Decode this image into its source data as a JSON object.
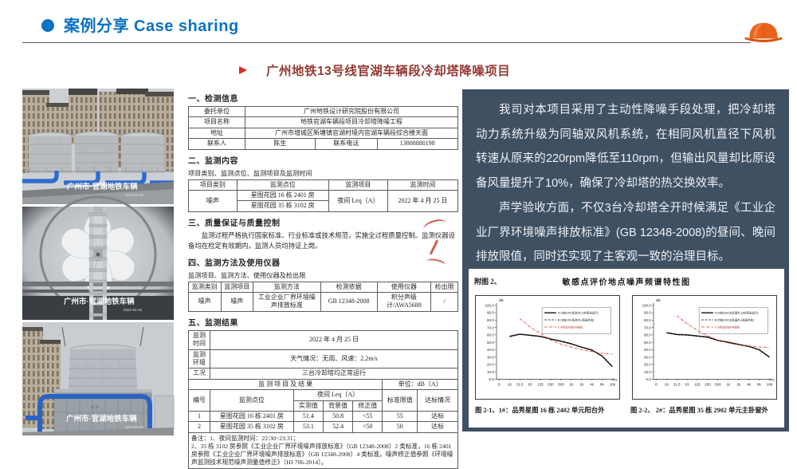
{
  "header": {
    "title": "案例分享 Case sharing"
  },
  "slide_title": "广州地铁13号线官湖车辆段冷却塔降噪项目",
  "photos": {
    "watermark": "广州市·官湖地铁车辆",
    "watermark_date": "2022-04-25"
  },
  "document": {
    "s1_heading": "一、检测信息",
    "info_table": {
      "rows": [
        {
          "label": "委托单位",
          "value": "广州地铁设计研究院股份有限公司"
        },
        {
          "label": "项目名称",
          "value": "地铁官湖车辆段项目冷却塔降噪工程"
        },
        {
          "label": "地址",
          "value": "广州市增城区新塘镇官湖村境内官湖车辆段综合楼天面"
        },
        {
          "label": "联系人",
          "value": "陈生",
          "label2": "联系电话",
          "value2": "13808880198"
        }
      ]
    },
    "s2_heading": "二、监测内容",
    "s2_note": "项目类别、监测点位、监测项目及监测时间",
    "content_table": {
      "headers": [
        "项目类别",
        "监测点位",
        "监测项目",
        "监测时间"
      ],
      "category": "噪声",
      "points": [
        "星图花园 16 栋 2401 房",
        "星图花园 35 栋 3102 房"
      ],
      "item": "夜间 Leq（A）",
      "time": "2022 年 4 月 25 日"
    },
    "s3_heading": "三、质量保证与质量控制",
    "s3_text": "监测过程严格执行国家标准、行业标准或技术规范，实施全过程质量控制。监测仪器设备均在检定有效期内，监测人员均持证上岗。",
    "s4_heading": "四、监测方法及使用仪器",
    "s4_note": "监测项目、监测方法、使用仪器及检出限",
    "method_table": {
      "headers": [
        "监测类别",
        "监测项目",
        "监测方法",
        "检测依据",
        "使用仪器",
        "检出限"
      ],
      "row": [
        "噪声",
        "噪声",
        "工业企业厂界环境噪声排放标准",
        "GB 12348-2008",
        "积分声级计/AWA5688",
        "/"
      ]
    },
    "s5_heading": "五、监测结果",
    "result_table": {
      "info_rows": [
        {
          "label": "监测时间",
          "value": "2022 年 4 月 25 日"
        },
        {
          "label": "监测环境",
          "value": "天气情况：无雨、风速：2.2m/s"
        },
        {
          "label": "工况",
          "value": "三台冷却塔均正常运行"
        }
      ],
      "banner_left": "监 测 项 目 及 结 果",
      "banner_right": "单位：dB（A）",
      "col_headers": {
        "no": "编号",
        "point": "监测点位",
        "leq": "夜间 Leq（A）",
        "measured": "实测值",
        "background": "背景值",
        "corrected": "修正值",
        "limit": "标准限值",
        "status": "达标情况"
      },
      "rows": [
        {
          "no": "1",
          "point": "星图花园 16 栋 2401 房",
          "measured": "51.4",
          "background": "50.8",
          "corrected": "<55",
          "limit": "55",
          "status": "达标"
        },
        {
          "no": "2",
          "point": "星图花园 35 栋 3102 房",
          "measured": "53.1",
          "background": "52.4",
          "corrected": "<50",
          "limit": "50",
          "status": "达标"
        }
      ],
      "remark": "备注：1、夜间监测时间：22:30~23:31；\n2、35 栋 3102 房参照《工业企业厂界环境噪声排放标准》（GB 12348-2008）2 类标准，16 栋 2401 房参照《工业企业厂界环境噪声排放标准》（GB 12348-2008）4 类标准。噪声修正值参照《环境噪声监测技术规范噪声测量值修正》（HJ 706-2014）。"
    }
  },
  "panel": {
    "paragraph1": "我司对本项目采用了主动性降噪手段处理，把冷却塔动力系统升级为同轴双风机系统，在相同风机直径下风机转速从原来的220rpm降低至110rpm，但输出风量却比原设备风量提升了10%，确保了冷却塔的热交换效率。",
    "paragraph2": "声学验收方面，不仅3台冷却塔全开时候满足《工业企业厂界环境噪声排放标准》(GB 12348-2008)的昼间、晚间排放限值，同时还实现了主客观一致的治理目标。"
  },
  "figure": {
    "label": "附图 2、",
    "title": "敏感点评价地点噪声频谱特性图",
    "captions": [
      "图 2-1、1#：品秀星图 16 栋 2402 单元阳台外",
      "图 2-2、 2#：品秀星图 35 栋 2902 单元主卧窗外"
    ]
  },
  "chart_data": [
    {
      "type": "line",
      "title": "敏感点评价地点噪声频谱特性图（16栋2401阳台外）",
      "xlabel": "Hz",
      "ylabel": "dB",
      "categories": [
        "8",
        "16",
        "31.5",
        "63",
        "125",
        "250",
        "500",
        "1k",
        "2k",
        "4k",
        "8k",
        "16k"
      ],
      "ylim": [
        0,
        100
      ],
      "ytick_step": 10,
      "grid": false,
      "legend_position": "top-right",
      "series": [
        {
          "name": "A:16栋2401阳台外-(3台塔全运行)",
          "style": "solid-black",
          "x_start_index": 1,
          "values": [
            58,
            61,
            59.5,
            58,
            54.5,
            51.5,
            48,
            43.5,
            39.5,
            31.5,
            17
          ]
        },
        {
          "name": "B:16栋2401阳台外-(背景状态)",
          "style": "dashed-black",
          "x_start_index": 1,
          "values": [
            57.5,
            60.5,
            59,
            57.5,
            54,
            51,
            47.5,
            43,
            39,
            31,
            16.5
          ]
        },
        {
          "name": "C:A状态对应NR曲线",
          "style": "dashdot-red",
          "x_start_index": 2,
          "values": [
            82,
            70.5,
            62,
            53,
            47.5,
            43.5,
            40,
            37.5,
            35,
            34
          ]
        }
      ]
    },
    {
      "type": "line",
      "title": "敏感点评价地点噪声频谱特性图（35栋主卧窗外）",
      "xlabel": "Hz",
      "ylabel": "dB",
      "categories": [
        "8",
        "16",
        "31.5",
        "63",
        "125",
        "250",
        "500",
        "1k",
        "2k",
        "4k",
        "8k",
        "16k"
      ],
      "ylim": [
        0,
        100
      ],
      "ytick_step": 10,
      "grid": false,
      "legend_position": "top-right",
      "series": [
        {
          "name": "A:35栋2902主卧窗外-(3台塔全运行)",
          "style": "solid-black",
          "x_start_index": 1,
          "values": [
            63,
            60.5,
            60,
            58.5,
            57,
            52.5,
            50,
            47,
            44.5,
            40,
            30
          ]
        },
        {
          "name": "B:35栋3102主卧窗外-(背景状态)",
          "style": "dashed-black",
          "x_start_index": 1,
          "values": [
            62.5,
            60,
            59.5,
            58,
            56.5,
            52,
            49.5,
            46.5,
            44,
            39.5,
            29.5
          ]
        },
        {
          "name": "C:A状态对应NR曲线",
          "style": "dashdot-red",
          "x_start_index": 2,
          "values": [
            86,
            75,
            66,
            58.5,
            53,
            49,
            46.5,
            45,
            43.5,
            43
          ]
        }
      ]
    }
  ],
  "colors": {
    "accent_blue": "#0b72c4",
    "title_red": "#943a34",
    "panel_bg": "#405063",
    "nr_curve_red": "#d93a2e",
    "pipe_blue": "#2f6cce",
    "helmet_orange": "#e8641c"
  }
}
